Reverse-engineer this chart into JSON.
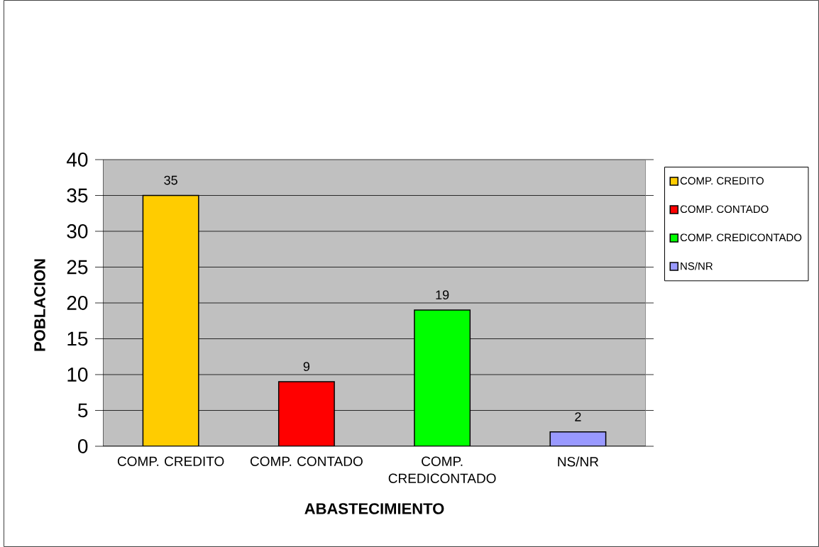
{
  "chart_data": {
    "type": "bar",
    "xlabel": "ABASTECIMIENTO",
    "ylabel": "POBLACION",
    "categories": [
      "COMP. CREDITO",
      "COMP. CONTADO",
      "COMP. CREDICONTADO",
      "NS/NR"
    ],
    "series": [
      {
        "name": "COMP. CREDITO",
        "color": "#ffcc00",
        "values": [
          35,
          null,
          null,
          null
        ]
      },
      {
        "name": "COMP. CONTADO",
        "color": "#ff0000",
        "values": [
          null,
          9,
          null,
          null
        ]
      },
      {
        "name": "COMP. CREDICONTADO",
        "color": "#00ff00",
        "values": [
          null,
          null,
          19,
          null
        ]
      },
      {
        "name": "NS/NR",
        "color": "#9999ff",
        "values": [
          null,
          null,
          null,
          2
        ]
      }
    ],
    "ylim": [
      0,
      40
    ],
    "yticks": [
      0,
      5,
      10,
      15,
      20,
      25,
      30,
      35,
      40
    ],
    "grid": "y",
    "legend": "right",
    "data_labels": true
  }
}
